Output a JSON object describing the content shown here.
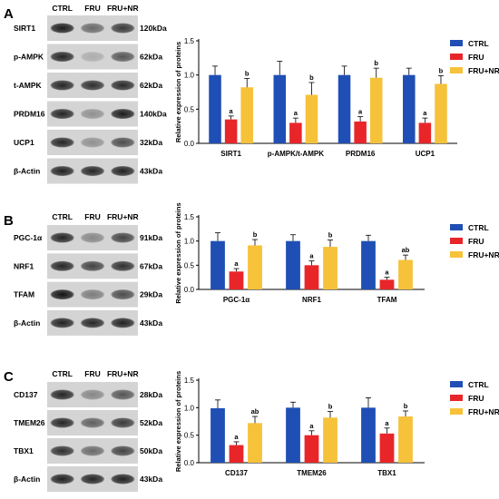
{
  "colors": {
    "CTRL": "#1f4fb4",
    "FRU": "#e8262a",
    "FRU+NR": "#f6c23a"
  },
  "legend": [
    "CTRL",
    "FRU",
    "FRU+NR"
  ],
  "groups": [
    "CTRL",
    "FRU",
    "FRU+NR"
  ],
  "panels": [
    {
      "letter": "A",
      "blot_proteins": [
        "SIRT1",
        "p-AMPK",
        "t-AMPK",
        "PRDM16",
        "UCP1",
        "β-Actin"
      ],
      "blot_kda": [
        "120kDa",
        "62kDa",
        "62kDa",
        "140kDa",
        "32kDa",
        "43kDa"
      ],
      "ylabel": "Relative expression of proteins"
    },
    {
      "letter": "B",
      "blot_proteins": [
        "PGC-1α",
        "NRF1",
        "TFAM",
        "β-Actin"
      ],
      "blot_kda": [
        "91kDa",
        "67kDa",
        "29kDa",
        "43kDa"
      ],
      "ylabel": "Relative expression of proteins"
    },
    {
      "letter": "C",
      "blot_proteins": [
        "CD137",
        "TMEM26",
        "TBX1",
        "β-Actin"
      ],
      "blot_kda": [
        "28kDa",
        "52kDa",
        "50kDa",
        "43kDa"
      ],
      "ylabel": "Relative expression of proteins"
    }
  ],
  "chart_data": [
    {
      "type": "bar",
      "categories": [
        "SIRT1",
        "p-AMPK/t-AMPK",
        "PRDM16",
        "UCP1"
      ],
      "ylabel": "Relative expression of proteins",
      "ylim": [
        0,
        1.5
      ],
      "yticks": [
        "0.0",
        "0.5",
        "1.0",
        "1.5"
      ],
      "legend_position": "top-right",
      "series": [
        {
          "name": "CTRL",
          "values": [
            1.0,
            1.0,
            1.0,
            1.0
          ],
          "errors": [
            0.13,
            0.2,
            0.13,
            0.1
          ],
          "labels": [
            "",
            "",
            "",
            ""
          ]
        },
        {
          "name": "FRU",
          "values": [
            0.35,
            0.3,
            0.32,
            0.3
          ],
          "errors": [
            0.05,
            0.07,
            0.07,
            0.07
          ],
          "labels": [
            "a",
            "a",
            "a",
            "a"
          ]
        },
        {
          "name": "FRU+NR",
          "values": [
            0.82,
            0.71,
            0.96,
            0.87
          ],
          "errors": [
            0.13,
            0.18,
            0.14,
            0.12
          ],
          "labels": [
            "b",
            "b",
            "b",
            "b"
          ]
        }
      ]
    },
    {
      "type": "bar",
      "categories": [
        "PGC-1α",
        "NRF1",
        "TFAM"
      ],
      "ylabel": "Relative expression of proteins",
      "ylim": [
        0,
        1.5
      ],
      "yticks": [
        "0.0",
        "0.5",
        "1.0",
        "1.5"
      ],
      "legend_position": "top-right",
      "series": [
        {
          "name": "CTRL",
          "values": [
            1.0,
            1.0,
            1.0
          ],
          "errors": [
            0.17,
            0.13,
            0.12
          ],
          "labels": [
            "",
            "",
            ""
          ]
        },
        {
          "name": "FRU",
          "values": [
            0.37,
            0.5,
            0.2
          ],
          "errors": [
            0.06,
            0.09,
            0.05
          ],
          "labels": [
            "a",
            "a",
            "a"
          ]
        },
        {
          "name": "FRU+NR",
          "values": [
            0.91,
            0.88,
            0.61
          ],
          "errors": [
            0.12,
            0.14,
            0.1
          ],
          "labels": [
            "b",
            "b",
            "ab"
          ]
        }
      ]
    },
    {
      "type": "bar",
      "categories": [
        "CD137",
        "TMEM26",
        "TBX1"
      ],
      "ylabel": "Relative expression of proteins",
      "ylim": [
        0,
        1.5
      ],
      "yticks": [
        "0.0",
        "0.5",
        "1.0",
        "1.5"
      ],
      "legend_position": "top-right",
      "series": [
        {
          "name": "CTRL",
          "values": [
            0.99,
            1.0,
            1.0
          ],
          "errors": [
            0.15,
            0.1,
            0.18
          ],
          "labels": [
            "",
            "",
            ""
          ]
        },
        {
          "name": "FRU",
          "values": [
            0.32,
            0.5,
            0.53
          ],
          "errors": [
            0.06,
            0.08,
            0.1
          ],
          "labels": [
            "a",
            "a",
            "a"
          ]
        },
        {
          "name": "FRU+NR",
          "values": [
            0.72,
            0.82,
            0.84
          ],
          "errors": [
            0.12,
            0.11,
            0.1
          ],
          "labels": [
            "ab",
            "b",
            "b"
          ]
        }
      ]
    }
  ]
}
